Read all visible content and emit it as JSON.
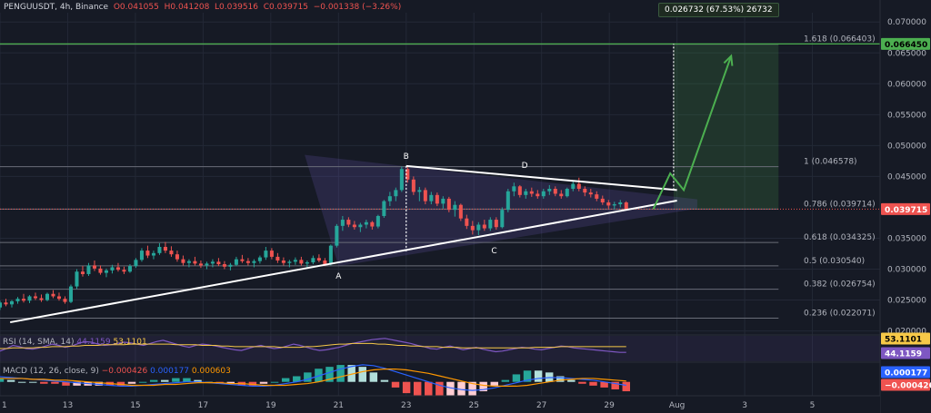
{
  "header": {
    "symbol": "PENGUUSDT, 4h, Binance",
    "open": "O0.041055",
    "high": "H0.041208",
    "low": "L0.039516",
    "close": "C0.039715",
    "change": "−0.001338 (−3.26%)"
  },
  "measure_label": "0.026732 (67.53%) 26732",
  "rsi_label": {
    "name": "RSI (14, SMA, 14)",
    "value1": "44.1159",
    "value2": "53.1101"
  },
  "macd_label": {
    "name": "MACD (12, 26, close, 9)",
    "value1": "−0.000426",
    "value2": "0.000177",
    "value3": "0.000603"
  },
  "colors": {
    "up": "#26a69a",
    "down": "#ef5350",
    "background": "#161a25",
    "target": "#4caf50",
    "rsi": "#7e57c2",
    "rsi_ma": "#f7c948",
    "macd": "#2962ff",
    "signal": "#ff9800"
  },
  "chart_data": {
    "type": "candlestick",
    "price_axis": {
      "ticks": [
        "0.070000",
        "0.065000",
        "0.060000",
        "0.055000",
        "0.050000",
        "0.045000",
        "0.035000",
        "0.030000",
        "0.025000",
        "0.020000"
      ],
      "tick_values": [
        0.07,
        0.065,
        0.06,
        0.055,
        0.05,
        0.045,
        0.035,
        0.03,
        0.025,
        0.02
      ],
      "range": [
        0.0195,
        0.0715
      ]
    },
    "time_axis": {
      "ticks": [
        "1",
        "13",
        "15",
        "17",
        "19",
        "21",
        "23",
        "25",
        "27",
        "29",
        "Aug",
        "3",
        "5"
      ],
      "tick_days": [
        11,
        13,
        15,
        17,
        19,
        21,
        23,
        25,
        27,
        29,
        31,
        33,
        35
      ],
      "range_days": [
        11,
        37
      ]
    },
    "current_price": {
      "label": "0.039715",
      "value": 0.039715
    },
    "target_price": {
      "label": "0.066450",
      "value": 0.06645
    },
    "fibonacci": [
      {
        "label": "1.618 (0.066403)",
        "value": 0.066403
      },
      {
        "label": "1 (0.046578)",
        "value": 0.046578
      },
      {
        "label": "0.786 (0.039714)",
        "value": 0.039714
      },
      {
        "label": "0.618 (0.034325)",
        "value": 0.034325
      },
      {
        "label": "0.5 (0.030540)",
        "value": 0.03054
      },
      {
        "label": "0.382 (0.026754)",
        "value": 0.026754
      },
      {
        "label": "0.236 (0.022071)",
        "value": 0.022071
      }
    ],
    "pattern_points": [
      {
        "label": "A",
        "day": 21.0,
        "price": 0.0305
      },
      {
        "label": "B",
        "day": 23.0,
        "price": 0.0467
      },
      {
        "label": "C",
        "day": 25.6,
        "price": 0.0343
      },
      {
        "label": "D",
        "day": 26.5,
        "price": 0.0452
      }
    ],
    "trendlines": [
      {
        "name": "support",
        "from": [
          11.3,
          0.0214
        ],
        "to": [
          31.0,
          0.0411
        ]
      },
      {
        "name": "resistance",
        "from": [
          23.0,
          0.0467
        ],
        "to": [
          31.0,
          0.0428
        ]
      }
    ],
    "projection": {
      "path": [
        [
          30.3,
          0.0397
        ],
        [
          30.8,
          0.0455
        ],
        [
          31.2,
          0.0428
        ],
        [
          32.6,
          0.0645
        ]
      ],
      "zone": {
        "from_day": 30.9,
        "to_day": 34.0,
        "low": 0.0397,
        "high": 0.06645
      }
    },
    "candles": [
      [
        0.0238,
        0.0249,
        0.0234,
        0.0246
      ],
      [
        0.0246,
        0.0252,
        0.024,
        0.0243
      ],
      [
        0.0243,
        0.025,
        0.0238,
        0.0248
      ],
      [
        0.0248,
        0.0255,
        0.0244,
        0.0252
      ],
      [
        0.0252,
        0.026,
        0.0246,
        0.0249
      ],
      [
        0.0249,
        0.0258,
        0.0245,
        0.0256
      ],
      [
        0.0256,
        0.0262,
        0.025,
        0.0253
      ],
      [
        0.0253,
        0.0259,
        0.0247,
        0.025
      ],
      [
        0.025,
        0.0262,
        0.0248,
        0.026
      ],
      [
        0.026,
        0.0266,
        0.0253,
        0.0256
      ],
      [
        0.0256,
        0.0262,
        0.0249,
        0.0252
      ],
      [
        0.0252,
        0.0256,
        0.0244,
        0.0247
      ],
      [
        0.0247,
        0.0275,
        0.0245,
        0.0272
      ],
      [
        0.0272,
        0.03,
        0.0268,
        0.0296
      ],
      [
        0.0296,
        0.0305,
        0.0288,
        0.0292
      ],
      [
        0.0292,
        0.031,
        0.0289,
        0.0306
      ],
      [
        0.0306,
        0.0314,
        0.0297,
        0.0301
      ],
      [
        0.0301,
        0.0306,
        0.0291,
        0.0294
      ],
      [
        0.0294,
        0.0301,
        0.0287,
        0.0298
      ],
      [
        0.0298,
        0.0307,
        0.0293,
        0.0303
      ],
      [
        0.0303,
        0.031,
        0.0296,
        0.0299
      ],
      [
        0.0299,
        0.0304,
        0.0292,
        0.0296
      ],
      [
        0.0296,
        0.0308,
        0.0294,
        0.0305
      ],
      [
        0.0305,
        0.0318,
        0.0302,
        0.0315
      ],
      [
        0.0315,
        0.0334,
        0.0312,
        0.033
      ],
      [
        0.033,
        0.0338,
        0.0318,
        0.0322
      ],
      [
        0.0322,
        0.033,
        0.0316,
        0.0326
      ],
      [
        0.0326,
        0.0342,
        0.0323,
        0.0336
      ],
      [
        0.0336,
        0.0344,
        0.0326,
        0.033
      ],
      [
        0.033,
        0.0337,
        0.032,
        0.0324
      ],
      [
        0.0324,
        0.033,
        0.0312,
        0.0316
      ],
      [
        0.0316,
        0.0322,
        0.0306,
        0.031
      ],
      [
        0.031,
        0.0316,
        0.0303,
        0.0313
      ],
      [
        0.0313,
        0.032,
        0.0306,
        0.0309
      ],
      [
        0.0309,
        0.0314,
        0.0302,
        0.0306
      ],
      [
        0.0306,
        0.0312,
        0.03,
        0.0309
      ],
      [
        0.0309,
        0.0316,
        0.0303,
        0.0312
      ],
      [
        0.0312,
        0.0318,
        0.0305,
        0.0308
      ],
      [
        0.0308,
        0.0313,
        0.03,
        0.0304
      ],
      [
        0.0304,
        0.031,
        0.0298,
        0.0307
      ],
      [
        0.0307,
        0.032,
        0.0305,
        0.0316
      ],
      [
        0.0316,
        0.0323,
        0.031,
        0.0313
      ],
      [
        0.0313,
        0.0318,
        0.0306,
        0.031
      ],
      [
        0.031,
        0.0316,
        0.0303,
        0.0313
      ],
      [
        0.0313,
        0.0322,
        0.0309,
        0.0319
      ],
      [
        0.0319,
        0.0336,
        0.0315,
        0.033
      ],
      [
        0.033,
        0.0334,
        0.0316,
        0.032
      ],
      [
        0.032,
        0.0326,
        0.031,
        0.0314
      ],
      [
        0.0314,
        0.0319,
        0.0306,
        0.031
      ],
      [
        0.031,
        0.0315,
        0.0303,
        0.0312
      ],
      [
        0.0312,
        0.0319,
        0.0307,
        0.0315
      ],
      [
        0.0315,
        0.032,
        0.0306,
        0.0309
      ],
      [
        0.0309,
        0.0314,
        0.0303,
        0.0311
      ],
      [
        0.0311,
        0.0322,
        0.0308,
        0.0318
      ],
      [
        0.0318,
        0.0324,
        0.0311,
        0.0314
      ],
      [
        0.0314,
        0.0318,
        0.0305,
        0.0308
      ],
      [
        0.0308,
        0.034,
        0.0306,
        0.0338
      ],
      [
        0.0338,
        0.0373,
        0.0335,
        0.037
      ],
      [
        0.037,
        0.0386,
        0.0362,
        0.038
      ],
      [
        0.038,
        0.0384,
        0.0368,
        0.0372
      ],
      [
        0.0372,
        0.0378,
        0.0364,
        0.0368
      ],
      [
        0.0368,
        0.0375,
        0.036,
        0.0372
      ],
      [
        0.0372,
        0.038,
        0.0366,
        0.0376
      ],
      [
        0.0376,
        0.0378,
        0.0364,
        0.0369
      ],
      [
        0.0369,
        0.0388,
        0.0366,
        0.0386
      ],
      [
        0.0386,
        0.0412,
        0.0383,
        0.041
      ],
      [
        0.041,
        0.0425,
        0.0402,
        0.0418
      ],
      [
        0.0418,
        0.0432,
        0.041,
        0.0428
      ],
      [
        0.0428,
        0.0466,
        0.0425,
        0.0462
      ],
      [
        0.0462,
        0.0468,
        0.044,
        0.0445
      ],
      [
        0.0445,
        0.045,
        0.042,
        0.0425
      ],
      [
        0.0425,
        0.0433,
        0.041,
        0.0428
      ],
      [
        0.0428,
        0.0432,
        0.0405,
        0.041
      ],
      [
        0.041,
        0.0425,
        0.0405,
        0.042
      ],
      [
        0.042,
        0.0424,
        0.0402,
        0.0406
      ],
      [
        0.0406,
        0.0418,
        0.0398,
        0.0414
      ],
      [
        0.0414,
        0.0417,
        0.0392,
        0.0396
      ],
      [
        0.0396,
        0.041,
        0.0385,
        0.0404
      ],
      [
        0.0404,
        0.0406,
        0.0378,
        0.0382
      ],
      [
        0.0382,
        0.0388,
        0.0365,
        0.037
      ],
      [
        0.037,
        0.0378,
        0.0356,
        0.0363
      ],
      [
        0.0363,
        0.0376,
        0.0355,
        0.0372
      ],
      [
        0.0372,
        0.038,
        0.0362,
        0.0366
      ],
      [
        0.0366,
        0.0384,
        0.0362,
        0.038
      ],
      [
        0.038,
        0.0384,
        0.0364,
        0.0368
      ],
      [
        0.0368,
        0.04,
        0.0366,
        0.0396
      ],
      [
        0.0396,
        0.043,
        0.0392,
        0.0426
      ],
      [
        0.0426,
        0.044,
        0.0418,
        0.0434
      ],
      [
        0.0434,
        0.0436,
        0.0416,
        0.042
      ],
      [
        0.042,
        0.043,
        0.0414,
        0.0426
      ],
      [
        0.0426,
        0.0432,
        0.0417,
        0.0422
      ],
      [
        0.0422,
        0.0428,
        0.0414,
        0.0418
      ],
      [
        0.0418,
        0.043,
        0.0414,
        0.0426
      ],
      [
        0.0426,
        0.0436,
        0.042,
        0.043
      ],
      [
        0.043,
        0.0434,
        0.0418,
        0.0422
      ],
      [
        0.0422,
        0.0428,
        0.0414,
        0.0418
      ],
      [
        0.0418,
        0.0432,
        0.0416,
        0.043
      ],
      [
        0.043,
        0.0444,
        0.0426,
        0.0438
      ],
      [
        0.0438,
        0.0448,
        0.0426,
        0.043
      ],
      [
        0.043,
        0.0434,
        0.0418,
        0.0424
      ],
      [
        0.0424,
        0.043,
        0.0416,
        0.0421
      ],
      [
        0.0421,
        0.0426,
        0.041,
        0.0414
      ],
      [
        0.0414,
        0.0419,
        0.0404,
        0.0408
      ],
      [
        0.0408,
        0.0412,
        0.0398,
        0.0403
      ],
      [
        0.0403,
        0.0409,
        0.0397,
        0.0405
      ],
      [
        0.0405,
        0.0412,
        0.04,
        0.0408
      ],
      [
        0.0408,
        0.041,
        0.0395,
        0.0397
      ]
    ],
    "rsi": {
      "axis_labels": [
        "53.1101",
        "44.1159"
      ],
      "line": [
        46,
        50,
        55,
        53,
        50,
        49,
        51,
        54,
        57,
        55,
        52,
        54,
        58,
        61,
        60,
        57,
        55,
        56,
        58,
        60,
        59,
        57,
        55,
        58,
        61,
        63,
        60,
        57,
        54,
        52,
        55,
        57,
        56,
        54,
        52,
        50,
        48,
        47,
        50,
        53,
        55,
        52,
        50,
        51,
        54,
        57,
        55,
        52,
        49,
        47,
        48,
        50,
        52,
        55,
        58,
        60,
        62,
        64,
        65,
        66,
        64,
        62,
        60,
        58,
        55,
        53,
        50,
        49,
        52,
        54,
        51,
        48,
        50,
        52,
        49,
        47,
        45,
        46,
        48,
        50,
        52,
        51,
        49,
        48,
        50,
        52,
        54,
        53,
        51,
        50,
        49,
        48,
        47,
        46,
        45,
        44,
        44
      ],
      "ma": [
        50,
        50,
        51,
        51,
        51,
        51,
        52,
        52,
        53,
        53,
        53,
        54,
        54,
        55,
        55,
        55,
        56,
        56,
        56,
        56,
        57,
        57,
        57,
        57,
        57,
        57,
        57,
        56,
        56,
        56,
        56,
        55,
        55,
        55,
        54,
        54,
        53,
        53,
        53,
        53,
        53,
        53,
        53,
        52,
        52,
        52,
        52,
        53,
        53,
        54,
        55,
        56,
        57,
        57,
        58,
        58,
        58,
        58,
        57,
        57,
        56,
        55,
        55,
        54,
        54,
        53,
        53,
        53,
        52,
        52,
        52,
        51,
        51,
        51,
        51,
        51,
        51,
        51,
        51,
        51,
        51,
        51,
        52,
        52,
        52,
        52,
        53,
        53,
        53,
        53,
        53,
        53,
        53,
        53,
        53,
        53,
        53
      ]
    },
    "macd": {
      "axis_labels": [
        "0.000177",
        "−0.000426"
      ],
      "macd": [
        0.0006,
        0.0005,
        0.0004,
        0.0003,
        0.0002,
        0.0001,
        0.0,
        -0.0001,
        -0.0002,
        -0.0003,
        -0.0004,
        -0.0005,
        -0.0005,
        -0.0004,
        -0.0003,
        -0.0002,
        -0.0001,
        0.0,
        0.0,
        -0.0001,
        -0.0002,
        -0.0003,
        -0.0004,
        -0.0005,
        -0.0005,
        -0.0004,
        -0.0002,
        0.0,
        0.0003,
        0.0007,
        0.0011,
        0.0015,
        0.0018,
        0.002,
        0.0019,
        0.0016,
        0.0012,
        0.0008,
        0.0004,
        0.0,
        -0.0004,
        -0.0007,
        -0.0009,
        -0.001,
        -0.0009,
        -0.0007,
        -0.0004,
        -0.0001,
        0.0002,
        0.0004,
        0.0005,
        0.0005,
        0.0004,
        0.0003,
        0.0002,
        0.0,
        -0.0002,
        -0.0004
      ],
      "signal": [
        0.0004,
        0.0004,
        0.0004,
        0.0003,
        0.0003,
        0.0002,
        0.0002,
        0.0001,
        0.0,
        -0.0001,
        -0.0002,
        -0.0003,
        -0.0004,
        -0.0004,
        -0.0004,
        -0.0003,
        -0.0003,
        -0.0002,
        -0.0001,
        -0.0001,
        -0.0001,
        -0.0002,
        -0.0002,
        -0.0003,
        -0.0004,
        -0.0004,
        -0.0004,
        -0.0003,
        -0.0002,
        0.0,
        0.0003,
        0.0006,
        0.0009,
        0.0012,
        0.0014,
        0.0015,
        0.0015,
        0.0014,
        0.0012,
        0.001,
        0.0007,
        0.0004,
        0.0001,
        -0.0002,
        -0.0004,
        -0.0005,
        -0.0005,
        -0.0005,
        -0.0004,
        -0.0002,
        0.0,
        0.0002,
        0.0003,
        0.0004,
        0.0004,
        0.0003,
        0.0002,
        0.0001
      ],
      "range": [
        -0.0012,
        0.0022
      ]
    }
  }
}
